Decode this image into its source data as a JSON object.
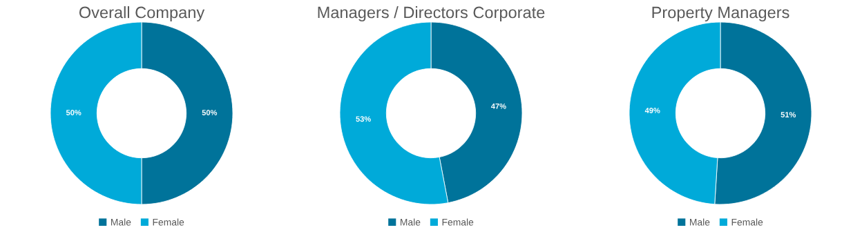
{
  "chart_data": [
    {
      "type": "donut",
      "title": "Overall Company",
      "categories": [
        "Male",
        "Female"
      ],
      "values": [
        50,
        50
      ],
      "colors": [
        "#00739a",
        "#00aad9"
      ],
      "value_labels": [
        "50%",
        "50%"
      ],
      "legend": "bottom"
    },
    {
      "type": "donut",
      "title": "Managers / Directors Corporate",
      "categories": [
        "Male",
        "Female"
      ],
      "values": [
        47,
        53
      ],
      "colors": [
        "#00739a",
        "#00aad9"
      ],
      "value_labels": [
        "47%",
        "53%"
      ],
      "legend": "bottom"
    },
    {
      "type": "donut",
      "title": "Property Managers",
      "categories": [
        "Male",
        "Female"
      ],
      "values": [
        51,
        49
      ],
      "colors": [
        "#00739a",
        "#00aad9"
      ],
      "value_labels": [
        "51%",
        "49%"
      ],
      "legend": "bottom"
    }
  ]
}
